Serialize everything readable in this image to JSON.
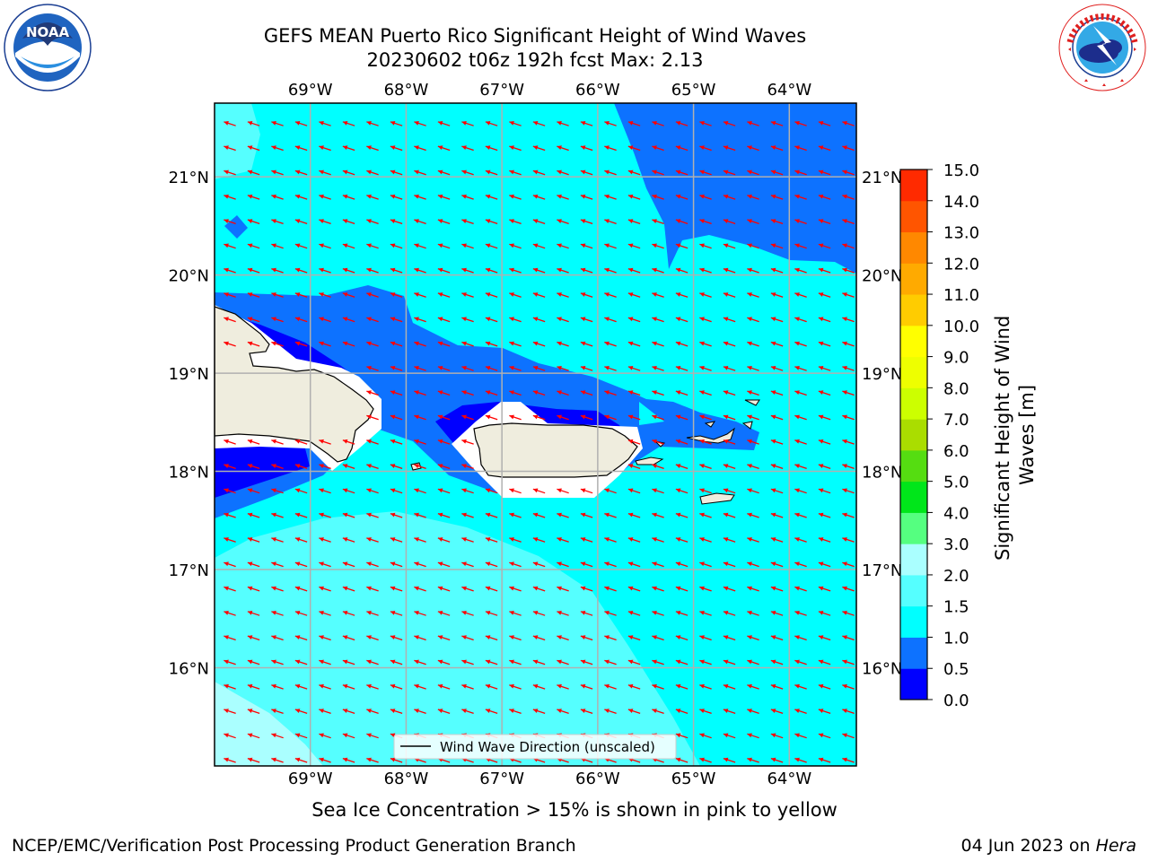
{
  "header": {
    "title_line1": "GEFS MEAN Puerto Rico Significant Height of Wind Waves",
    "title_line2": "20230602 t06z 192h fcst   Max: 2.13"
  },
  "logos": {
    "left": {
      "name": "NOAA",
      "text": "NOAA",
      "ring": "NATIONAL OCEANIC AND ATMOSPHERIC ADMINISTRATION · U.S. DEPARTMENT OF COMMERCE"
    },
    "right": {
      "name": "NWS",
      "ring": "NATIONAL WEATHER SERVICE"
    }
  },
  "map": {
    "lon_range": [
      -70.0,
      -63.3
    ],
    "lat_range": [
      15.0,
      21.75
    ],
    "lon_ticks": [
      -69,
      -68,
      -67,
      -66,
      -65,
      -64
    ],
    "lat_ticks": [
      16,
      17,
      18,
      19,
      20,
      21
    ],
    "lon_labels": [
      "69°W",
      "68°W",
      "67°W",
      "66°W",
      "65°W",
      "64°W"
    ],
    "lat_labels": [
      "16°N",
      "17°N",
      "18°N",
      "19°N",
      "20°N",
      "21°N"
    ],
    "grid": true,
    "ocean_color": "#00ffff",
    "land_color": "#efedde",
    "arrow_color": "#ff0000",
    "arrow_direction": "from east-southeast (pointing west-northwest)",
    "legend_label": "Wind Wave Direction (unscaled)",
    "legend_placement": "bottom-center"
  },
  "colorbar": {
    "label": "Significant Height of Wind\nWaves [m]",
    "levels": [
      0.0,
      0.5,
      1.0,
      1.5,
      2.0,
      3.0,
      4.0,
      5.0,
      6.0,
      7.0,
      8.0,
      9.0,
      10.0,
      11.0,
      12.0,
      13.0,
      14.0,
      15.0
    ],
    "tick_labels": [
      "0.0",
      "0.5",
      "1.0",
      "1.5",
      "2.0",
      "3.0",
      "4.0",
      "5.0",
      "6.0",
      "7.0",
      "8.0",
      "9.0",
      "10.0",
      "11.0",
      "12.0",
      "13.0",
      "14.0",
      "15.0"
    ],
    "colors": [
      "#0000ff",
      "#0d72ff",
      "#00ffff",
      "#55ffff",
      "#aaffff",
      "#55ff80",
      "#00e61a",
      "#55dd11",
      "#aadd00",
      "#ccff00",
      "#eeff00",
      "#ffff00",
      "#ffcc00",
      "#ffaa00",
      "#ff8800",
      "#ff5500",
      "#ff2a00"
    ]
  },
  "footer": {
    "caption": "Sea Ice Concentration > 15% is shown in pink to yellow",
    "credit": "NCEP/EMC/Verification Post Processing Product Generation Branch",
    "date": "04 Jun 2023 on ",
    "machine": "Hera"
  }
}
